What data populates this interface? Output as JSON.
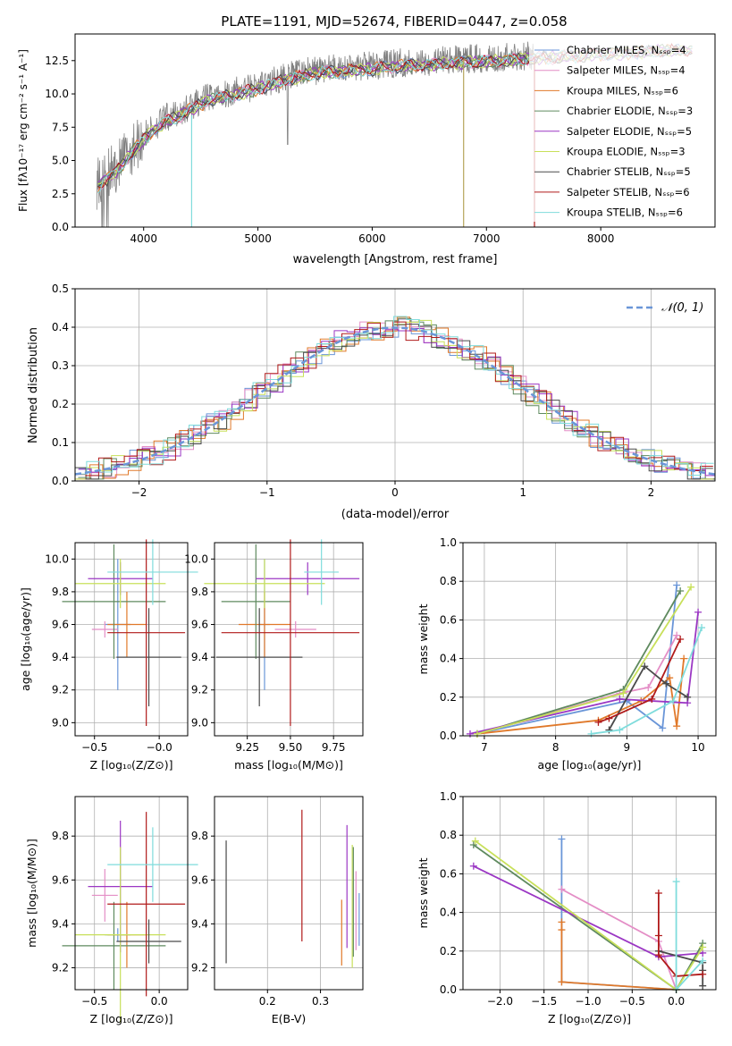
{
  "title": "PLATE=1191, MJD=52674, FIBERID=0447, z=0.058",
  "colors": {
    "chabrier_miles": "#6a96d8",
    "salpeter_miles": "#e48ec6",
    "kroupa_miles": "#e0792a",
    "chabrier_elodie": "#5f8a5f",
    "salpeter_elodie": "#9b37c4",
    "kroupa_elodie": "#c8e05a",
    "chabrier_stelib": "#4a4a4a",
    "salpeter_stelib": "#b01a1a",
    "kroupa_stelib": "#7fdcdc",
    "data": "#808080",
    "normal": "#6a96d8"
  },
  "chart_data": [
    {
      "type": "line",
      "panel": "spectrum",
      "xlabel": "wavelength [Angstrom, rest frame]",
      "ylabel": "Flux [fλ10⁻¹⁷ erg cm⁻² s⁻¹ A⁻¹]",
      "xlim": [
        3400,
        9000
      ],
      "ylim": [
        0,
        14.5
      ],
      "xticks": [
        4000,
        5000,
        6000,
        7000,
        8000
      ],
      "yticks": [
        "0.0",
        "2.5",
        "5.0",
        "7.5",
        "10.0",
        "12.5"
      ],
      "legend_position": "right",
      "legend": [
        "Chabrier MILES, Nₛₛₚ=4",
        "Salpeter MILES, Nₛₛₚ=4",
        "Kroupa MILES, Nₛₛₚ=6",
        "Chabrier ELODIE, Nₛₛₚ=3",
        "Salpeter ELODIE, Nₛₛₚ=5",
        "Kroupa ELODIE, Nₛₛₚ=3",
        "Chabrier STELIB, Nₛₛₚ=5",
        "Salpeter STELIB, Nₛₛₚ=6",
        "Kroupa STELIB, Nₛₛₚ=6"
      ],
      "model_curve": {
        "x": [
          3600,
          3700,
          3800,
          3900,
          4000,
          4100,
          4200,
          4300,
          4400,
          4500,
          4600,
          4800,
          5000,
          5200,
          5400,
          5600,
          5800,
          6000,
          6200,
          6400,
          6600,
          6800,
          7000,
          7200,
          7400,
          7600,
          7800,
          8000,
          8200,
          8400,
          8600,
          8800
        ],
        "y": [
          3.3,
          4.0,
          4.8,
          5.9,
          6.8,
          7.6,
          8.2,
          8.5,
          9.0,
          9.5,
          9.8,
          10.2,
          10.6,
          11.2,
          11.6,
          11.9,
          12.0,
          12.1,
          12.3,
          12.4,
          12.5,
          12.6,
          12.7,
          12.8,
          12.9,
          13.0,
          13.1,
          13.2,
          13.3,
          13.4,
          13.5,
          13.5
        ]
      },
      "data_range": [
        3590,
        7420
      ]
    },
    {
      "type": "bar",
      "panel": "residuals",
      "xlabel": "(data-model)/error",
      "ylabel": "Normed distribution",
      "xlim": [
        -2.5,
        2.5
      ],
      "ylim": [
        0,
        0.5
      ],
      "xticks": [
        "−2",
        "−1",
        "0",
        "1",
        "2"
      ],
      "yticks": [
        "0.0",
        "0.1",
        "0.2",
        "0.3",
        "0.4",
        "0.5"
      ],
      "legend": [
        "𝒩(0, 1)"
      ],
      "legend_position": "top-right",
      "bin_width": 0.1
    },
    {
      "type": "scatter",
      "panel": "age-vs-Z",
      "xlabel": "Z [log₁₀(Z/Z⊙)]",
      "ylabel": "age  [log₁₀(age/yr)]",
      "xlim": [
        -0.65,
        0.22
      ],
      "ylim": [
        8.92,
        10.1
      ],
      "xticks": [
        "−0.5",
        "−0.0"
      ],
      "yticks": [
        "9.0",
        "9.2",
        "9.4",
        "9.6",
        "9.8",
        "10.0"
      ],
      "points": [
        {
          "x": -0.32,
          "xerr": 0.1,
          "y": 9.6,
          "yerr": 0.4,
          "color": "chabrier_miles"
        },
        {
          "x": -0.42,
          "xerr": 0.1,
          "y": 9.57,
          "yerr": 0.05,
          "color": "salpeter_miles"
        },
        {
          "x": -0.25,
          "xerr": 0.15,
          "y": 9.6,
          "yerr": 0.2,
          "color": "kroupa_miles"
        },
        {
          "x": -0.35,
          "xerr": 0.4,
          "y": 9.74,
          "yerr": 0.35,
          "color": "chabrier_elodie"
        },
        {
          "x": -0.3,
          "xerr": 0.25,
          "y": 9.88,
          "yerr": 0.1,
          "color": "salpeter_elodie"
        },
        {
          "x": -0.3,
          "xerr": 0.35,
          "y": 9.85,
          "yerr": 0.15,
          "color": "kroupa_elodie"
        },
        {
          "x": -0.08,
          "xerr": 0.25,
          "y": 9.4,
          "yerr": 0.3,
          "color": "chabrier_stelib"
        },
        {
          "x": -0.1,
          "xerr": 0.3,
          "y": 9.55,
          "yerr": 0.57,
          "color": "salpeter_stelib"
        },
        {
          "x": -0.05,
          "xerr": 0.35,
          "y": 9.92,
          "yerr": 0.2,
          "color": "kroupa_stelib"
        }
      ]
    },
    {
      "type": "scatter",
      "panel": "age-vs-mass",
      "xlabel": "mass [log₁₀(M/M⊙)]",
      "ylabel": "",
      "xlim": [
        9.06,
        9.92
      ],
      "ylim": [
        8.92,
        10.1
      ],
      "xticks": [
        "9.25",
        "9.50",
        "9.75"
      ],
      "yticks": [
        "9.0",
        "9.2",
        "9.4",
        "9.6",
        "9.8",
        "10.0"
      ],
      "points": [
        {
          "x": 9.35,
          "xerr": 0.03,
          "y": 9.6,
          "yerr": 0.4,
          "color": "chabrier_miles"
        },
        {
          "x": 9.53,
          "xerr": 0.12,
          "y": 9.57,
          "yerr": 0.05,
          "color": "salpeter_miles"
        },
        {
          "x": 9.35,
          "xerr": 0.15,
          "y": 9.6,
          "yerr": 0.2,
          "color": "kroupa_miles"
        },
        {
          "x": 9.3,
          "xerr": 0.2,
          "y": 9.74,
          "yerr": 0.35,
          "color": "chabrier_elodie"
        },
        {
          "x": 9.6,
          "xerr": 0.3,
          "y": 9.88,
          "yerr": 0.1,
          "color": "salpeter_elodie"
        },
        {
          "x": 9.35,
          "xerr": 0.35,
          "y": 9.85,
          "yerr": 0.15,
          "color": "kroupa_elodie"
        },
        {
          "x": 9.32,
          "xerr": 0.25,
          "y": 9.4,
          "yerr": 0.3,
          "color": "chabrier_stelib"
        },
        {
          "x": 9.5,
          "xerr": 0.4,
          "y": 9.55,
          "yerr": 0.57,
          "color": "salpeter_stelib"
        },
        {
          "x": 9.68,
          "xerr": 0.1,
          "y": 9.92,
          "yerr": 0.2,
          "color": "kroupa_stelib"
        }
      ]
    },
    {
      "type": "line",
      "panel": "weight-vs-age",
      "xlabel": "age  [log₁₀(age/yr)]",
      "ylabel": "mass weight",
      "xlim": [
        6.7,
        10.25
      ],
      "ylim": [
        0,
        1
      ],
      "xticks": [
        "7",
        "8",
        "9",
        "10"
      ],
      "yticks": [
        "0.0",
        "0.2",
        "0.4",
        "0.6",
        "0.8",
        "1.0"
      ],
      "series": [
        {
          "color": "chabrier_miles",
          "x": [
            6.9,
            9.0,
            9.5,
            9.7
          ],
          "y": [
            0.01,
            0.18,
            0.04,
            0.78
          ]
        },
        {
          "color": "salpeter_miles",
          "x": [
            6.9,
            8.9,
            9.3,
            9.7
          ],
          "y": [
            0.01,
            0.22,
            0.25,
            0.52
          ]
        },
        {
          "color": "kroupa_miles",
          "x": [
            6.9,
            8.6,
            9.2,
            9.6,
            9.7,
            9.8
          ],
          "y": [
            0.01,
            0.08,
            0.18,
            0.3,
            0.05,
            0.4
          ]
        },
        {
          "color": "chabrier_elodie",
          "x": [
            6.9,
            8.95,
            9.75
          ],
          "y": [
            0.01,
            0.24,
            0.75
          ]
        },
        {
          "color": "salpeter_elodie",
          "x": [
            6.8,
            8.9,
            9.85,
            10.0
          ],
          "y": [
            0.01,
            0.19,
            0.17,
            0.64
          ]
        },
        {
          "color": "kroupa_elodie",
          "x": [
            6.9,
            8.95,
            9.9
          ],
          "y": [
            0.01,
            0.22,
            0.77
          ]
        },
        {
          "color": "chabrier_stelib",
          "x": [
            8.75,
            9.25,
            9.55,
            9.85
          ],
          "y": [
            0.03,
            0.36,
            0.27,
            0.2
          ]
        },
        {
          "color": "salpeter_stelib",
          "x": [
            8.6,
            8.75,
            9.35,
            9.75
          ],
          "y": [
            0.07,
            0.09,
            0.19,
            0.5
          ]
        },
        {
          "color": "kroupa_stelib",
          "x": [
            8.5,
            8.9,
            9.65,
            10.05
          ],
          "y": [
            0.01,
            0.03,
            0.18,
            0.56
          ]
        }
      ]
    },
    {
      "type": "scatter",
      "panel": "mass-vs-Z",
      "xlabel": "Z [log₁₀(Z/Z⊙)]",
      "ylabel": "mass [log₁₀(M/M⊙)]",
      "xlim": [
        -0.65,
        0.22
      ],
      "ylim": [
        9.1,
        9.98
      ],
      "xticks": [
        "−0.5",
        "0.0"
      ],
      "yticks": [
        "9.2",
        "9.4",
        "9.6",
        "9.8"
      ],
      "points": [
        {
          "x": -0.32,
          "xerr": 0.1,
          "y": 9.35,
          "yerr": 0.03,
          "color": "chabrier_miles"
        },
        {
          "x": -0.42,
          "xerr": 0.1,
          "y": 9.53,
          "yerr": 0.12,
          "color": "salpeter_miles"
        },
        {
          "x": -0.25,
          "xerr": 0.15,
          "y": 9.35,
          "yerr": 0.15,
          "color": "kroupa_miles"
        },
        {
          "x": -0.35,
          "xerr": 0.4,
          "y": 9.3,
          "yerr": 0.2,
          "color": "chabrier_elodie"
        },
        {
          "x": -0.3,
          "xerr": 0.25,
          "y": 9.57,
          "yerr": 0.3,
          "color": "salpeter_elodie"
        },
        {
          "x": -0.3,
          "xerr": 0.35,
          "y": 9.35,
          "yerr": 0.4,
          "color": "kroupa_elodie"
        },
        {
          "x": -0.08,
          "xerr": 0.25,
          "y": 9.32,
          "yerr": 0.1,
          "color": "chabrier_stelib"
        },
        {
          "x": -0.1,
          "xerr": 0.3,
          "y": 9.49,
          "yerr": 0.42,
          "color": "salpeter_stelib"
        },
        {
          "x": -0.05,
          "xerr": 0.35,
          "y": 9.67,
          "yerr": 0.17,
          "color": "kroupa_stelib"
        }
      ]
    },
    {
      "type": "scatter",
      "panel": "mass-vs-ebv",
      "xlabel": "E(B-V)",
      "ylabel": "",
      "xlim": [
        0.1,
        0.38
      ],
      "ylim": [
        9.1,
        9.98
      ],
      "xticks": [
        "0.2",
        "0.3"
      ],
      "yticks": [
        "9.2",
        "9.4",
        "9.6",
        "9.8"
      ],
      "points": [
        {
          "x": 0.122,
          "y": 9.5,
          "yerr": 0.28,
          "color": "chabrier_stelib"
        },
        {
          "x": 0.265,
          "y": 9.62,
          "yerr": 0.3,
          "color": "salpeter_stelib"
        },
        {
          "x": 0.34,
          "y": 9.36,
          "yerr": 0.15,
          "color": "kroupa_miles"
        },
        {
          "x": 0.35,
          "y": 9.57,
          "yerr": 0.28,
          "color": "salpeter_elodie"
        },
        {
          "x": 0.36,
          "y": 9.48,
          "yerr": 0.28,
          "color": "kroupa_elodie"
        },
        {
          "x": 0.362,
          "y": 9.5,
          "yerr": 0.25,
          "color": "chabrier_elodie"
        },
        {
          "x": 0.367,
          "y": 9.46,
          "yerr": 0.18,
          "color": "salpeter_miles"
        },
        {
          "x": 0.373,
          "y": 9.42,
          "yerr": 0.12,
          "color": "chabrier_miles"
        }
      ]
    },
    {
      "type": "line",
      "panel": "weight-vs-Z",
      "xlabel": "Z [log₁₀(Z/Z⊙)]",
      "ylabel": "mass weight",
      "xlim": [
        -2.42,
        0.45
      ],
      "ylim": [
        0,
        1
      ],
      "xticks": [
        "−2.0",
        "−1.5",
        "−1.0",
        "−0.5",
        "0.0"
      ],
      "yticks": [
        "0.0",
        "0.2",
        "0.4",
        "0.6",
        "0.8",
        "1.0"
      ],
      "series": [
        {
          "color": "chabrier_miles",
          "x": [
            -1.3,
            -1.3,
            0.0
          ],
          "y": [
            0.78,
            0.04,
            0.0
          ]
        },
        {
          "color": "salpeter_miles",
          "x": [
            -1.3,
            -0.2,
            0.0
          ],
          "y": [
            0.52,
            0.25,
            0.0
          ]
        },
        {
          "color": "kroupa_miles",
          "x": [
            -1.3,
            -1.3,
            -1.3,
            0.0
          ],
          "y": [
            0.31,
            0.35,
            0.04,
            0.0
          ]
        },
        {
          "color": "chabrier_elodie",
          "x": [
            -2.3,
            0.0,
            0.3
          ],
          "y": [
            0.75,
            0.0,
            0.24
          ]
        },
        {
          "color": "salpeter_elodie",
          "x": [
            -2.3,
            -0.2,
            0.3
          ],
          "y": [
            0.64,
            0.17,
            0.19
          ]
        },
        {
          "color": "kroupa_elodie",
          "x": [
            -2.28,
            0.0,
            0.3
          ],
          "y": [
            0.77,
            0.0,
            0.22
          ]
        },
        {
          "color": "chabrier_stelib",
          "x": [
            -0.2,
            0.3,
            0.3,
            0.3
          ],
          "y": [
            0.2,
            0.14,
            0.02,
            0.1
          ]
        },
        {
          "color": "salpeter_stelib",
          "x": [
            -0.2,
            -0.2,
            -0.2,
            0.0,
            0.3
          ],
          "y": [
            0.5,
            0.28,
            0.18,
            0.07,
            0.08
          ]
        },
        {
          "color": "kroupa_stelib",
          "x": [
            0.0,
            0.0,
            0.3
          ],
          "y": [
            0.56,
            0.0,
            0.15
          ]
        }
      ]
    }
  ]
}
